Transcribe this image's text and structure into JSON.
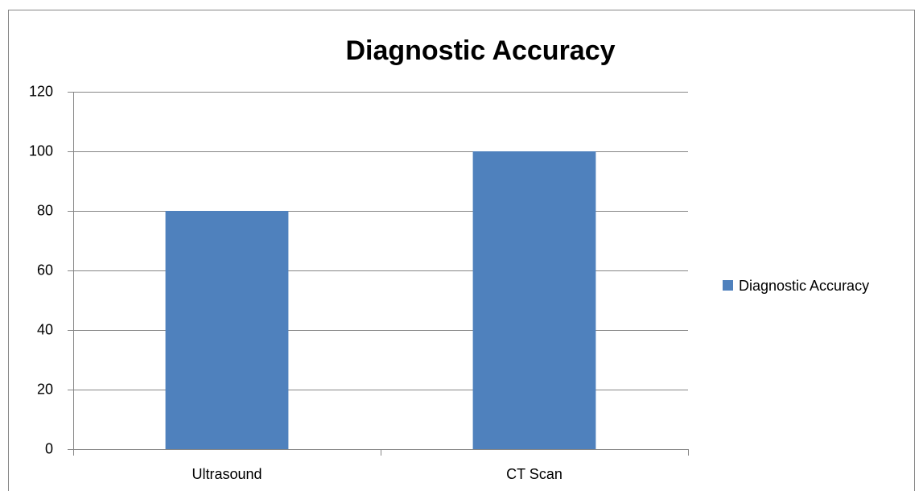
{
  "chart_data": {
    "type": "bar",
    "title": "Diagnostic Accuracy",
    "categories": [
      "Ultrasound",
      "CT Scan"
    ],
    "series": [
      {
        "name": "Diagnostic Accuracy",
        "color": "#4f81bd",
        "values": [
          80,
          100
        ]
      }
    ],
    "ylim": [
      0,
      120
    ],
    "yticks": [
      0,
      20,
      40,
      60,
      80,
      100,
      120
    ],
    "grid": true,
    "legend": "right"
  }
}
